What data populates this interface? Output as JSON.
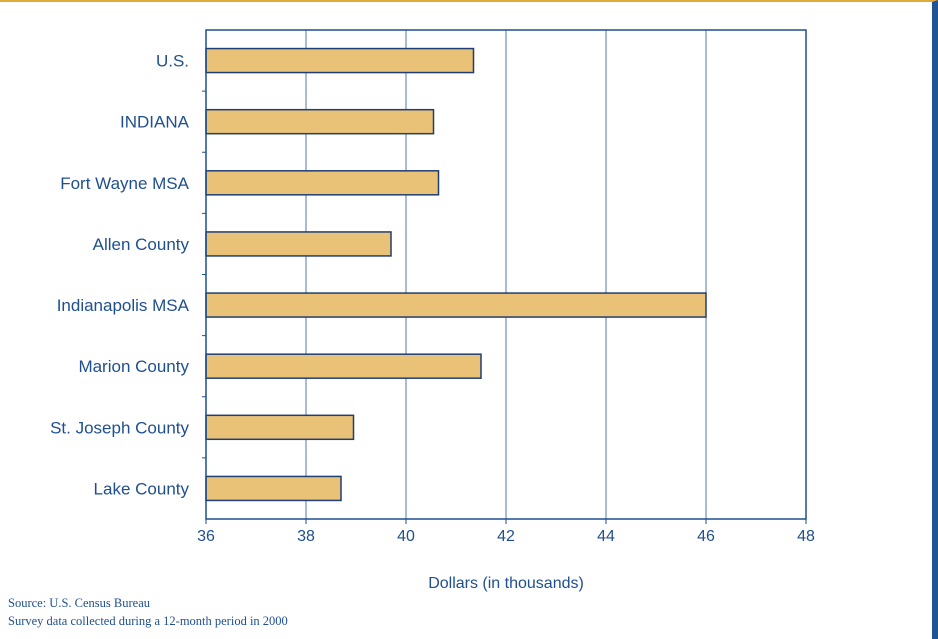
{
  "chart_data": {
    "type": "bar",
    "orientation": "horizontal",
    "categories": [
      "U.S.",
      "INDIANA",
      "Fort Wayne MSA",
      "Allen County",
      "Indianapolis MSA",
      "Marion County",
      "St. Joseph County",
      "Lake County"
    ],
    "values": [
      41.35,
      40.55,
      40.65,
      39.7,
      46.0,
      41.5,
      38.95,
      38.7
    ],
    "xlabel": "Dollars (in thousands)",
    "ylabel": "",
    "title": "",
    "xlim": [
      36,
      48
    ],
    "xticks": [
      "36",
      "38",
      "40",
      "42",
      "44",
      "46",
      "48"
    ],
    "grid": "vertical",
    "legend": "none",
    "colors": {
      "bar_fill": "#e9c177",
      "bar_stroke": "#1f3f73",
      "axis": "#1f4f8f",
      "grid": "#5577a8"
    }
  },
  "notes": {
    "source": "Source: U.S. Census Bureau",
    "survey": "Survey data collected during a 12-month period in 2000"
  }
}
